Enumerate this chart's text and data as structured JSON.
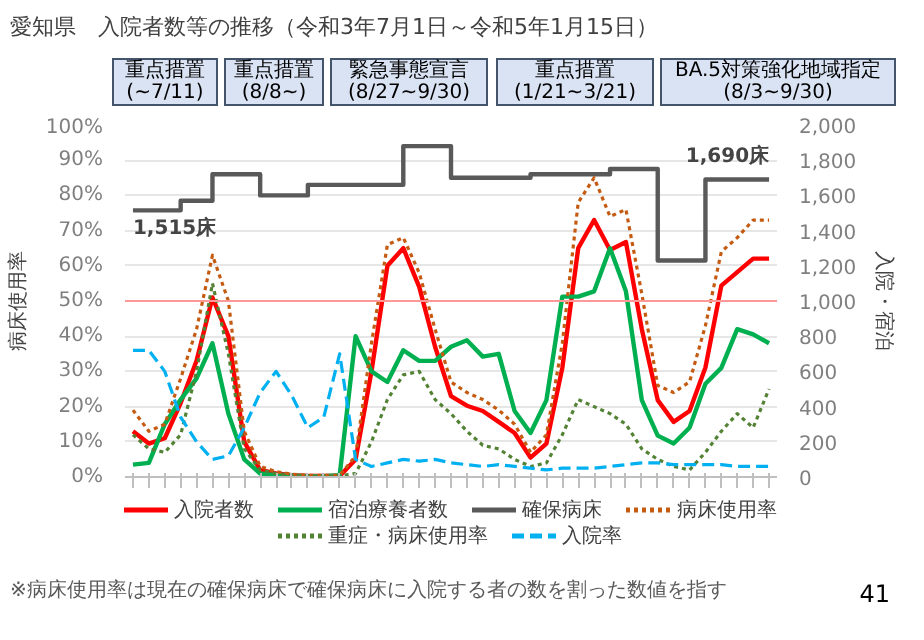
{
  "chart_data": {
    "type": "line",
    "title": "愛知県　入院者数等の推移（令和3年7月1日～令和5年1月15日）",
    "ylabel": "病床使用率",
    "y2label": "入院・宿泊",
    "categories": [
      null,
      null,
      null,
      null,
      null,
      null,
      null,
      null,
      null,
      null,
      null,
      null,
      null,
      null,
      null,
      null,
      null,
      null,
      null,
      null,
      null,
      null,
      null,
      null,
      null,
      null,
      null,
      null,
      null,
      null,
      null,
      null,
      null,
      null,
      null,
      null,
      null,
      null,
      null,
      null,
      null
    ],
    "series": [
      {
        "name": "入院者数",
        "color": "#ff0000",
        "axis": "y2",
        "line_style": "solid",
        "values": [
          260,
          190,
          220,
          420,
          660,
          1020,
          800,
          200,
          40,
          20,
          10,
          6,
          6,
          6,
          100,
          600,
          1200,
          1300,
          1080,
          740,
          460,
          405,
          375,
          313,
          250,
          110,
          190,
          620,
          1300,
          1460,
          1290,
          1335,
          840,
          437,
          313,
          375,
          622,
          1087,
          1164,
          1241,
          1241
        ]
      },
      {
        "name": "宿泊療養者数",
        "color": "#00b050",
        "axis": "y2",
        "line_style": "solid",
        "values": [
          70,
          80,
          300,
          440,
          560,
          760,
          360,
          100,
          20,
          10,
          8,
          5,
          5,
          10,
          800,
          600,
          540,
          720,
          660,
          660,
          740,
          777,
          684,
          700,
          375,
          250,
          437,
          1025,
          1025,
          1055,
          1300,
          1055,
          437,
          235,
          190,
          280,
          530,
          620,
          840,
          810,
          760
        ]
      },
      {
        "name": "確保病床",
        "color": "#595959",
        "axis": "y2",
        "type": "step",
        "line_style": "solid",
        "values": [
          1515,
          1515,
          1515,
          1570,
          1570,
          1720,
          1720,
          1720,
          1600,
          1600,
          1600,
          1660,
          1660,
          1660,
          1660,
          1660,
          1660,
          1880,
          1880,
          1880,
          1700,
          1700,
          1700,
          1700,
          1700,
          1720,
          1720,
          1720,
          1720,
          1720,
          1750,
          1750,
          1750,
          1230,
          1230,
          1230,
          1690,
          1690,
          1690,
          1690,
          1690
        ],
        "value_labels": [
          "1,515床",
          null,
          null,
          null,
          null,
          null,
          null,
          null,
          null,
          null,
          null,
          null,
          null,
          null,
          null,
          null,
          null,
          null,
          null,
          null,
          null,
          null,
          null,
          null,
          null,
          null,
          null,
          null,
          null,
          null,
          null,
          null,
          null,
          null,
          null,
          null,
          null,
          null,
          null,
          null,
          "1,690床"
        ]
      },
      {
        "name": "病床使用率",
        "color": "#c55a11",
        "line_style": "dotted",
        "values": [
          19,
          13,
          15,
          28,
          42,
          63,
          50,
          13,
          3,
          1.5,
          0.8,
          0.5,
          0.5,
          0.5,
          6,
          38,
          66,
          68,
          58,
          42,
          27,
          24,
          22,
          19,
          15,
          7,
          12,
          38,
          78,
          85,
          74,
          76,
          52,
          26,
          24,
          27,
          43,
          64,
          68,
          73,
          73
        ]
      },
      {
        "name": "重症・病床使用率",
        "color": "#548235",
        "line_style": "dotted",
        "values": [
          12,
          8,
          7,
          12,
          30,
          55,
          35,
          8,
          2,
          1,
          0.5,
          0.3,
          0.3,
          0.3,
          1,
          10,
          22,
          29,
          30,
          22,
          18,
          13,
          9,
          8,
          5,
          3,
          4,
          12,
          22,
          20,
          18,
          15,
          8,
          5,
          3,
          2,
          7,
          13,
          18,
          14,
          25
        ]
      },
      {
        "name": "入院率",
        "color": "#00b0f0",
        "line_style": "dashed",
        "values": [
          36,
          36,
          30,
          17,
          10,
          5,
          6,
          14,
          24,
          30,
          23,
          14,
          17,
          35,
          5,
          3,
          4,
          5,
          4.5,
          5,
          4,
          3.5,
          3,
          3.5,
          3,
          2.5,
          2,
          2.5,
          2.5,
          2.5,
          3,
          3.5,
          4,
          4,
          3.5,
          3.5,
          3.5,
          3.5,
          3,
          3,
          3
        ]
      }
    ],
    "ylim": [
      0,
      100
    ],
    "yticks": [
      {
        "value": 0,
        "label": "0%"
      },
      {
        "value": 10,
        "label": "10%"
      },
      {
        "value": 20,
        "label": "20%"
      },
      {
        "value": 30,
        "label": "30%"
      },
      {
        "value": 40,
        "label": "40%"
      },
      {
        "value": 50,
        "label": "50%"
      },
      {
        "value": 60,
        "label": "60%"
      },
      {
        "value": 70,
        "label": "70%"
      },
      {
        "value": 80,
        "label": "80%"
      },
      {
        "value": 90,
        "label": "90%"
      },
      {
        "value": 100,
        "label": "100%"
      }
    ],
    "y2lim": [
      0,
      2000
    ],
    "y2ticks": [
      0,
      200,
      400,
      600,
      800,
      {
        "value": 1000,
        "label": "1,000"
      },
      {
        "value": 1200,
        "label": "1,200"
      },
      {
        "value": 1400,
        "label": "1,400"
      },
      {
        "value": 1600,
        "label": "1,600"
      },
      {
        "value": 1800,
        "label": "1,800"
      },
      {
        "value": 2000,
        "label": "2,000"
      }
    ],
    "ref_lines": [
      {
        "axis": "y",
        "value": 50,
        "color": "#ff9999"
      }
    ],
    "annotations": [
      "重点措置\n(~7/11)",
      "重点措置\n(8/8~)",
      "緊急事態宣言\n(8/27~9/30)",
      "重点措置\n(1/21~3/21)",
      "BA.5対策強化地域指定\n(8/3~9/30)",
      "※病床使用率は現在の確保病床で確保病床に入院する者の数を割った数値を指す",
      "41"
    ],
    "grid": "y",
    "legend": "bottom",
    "marker": "none"
  }
}
